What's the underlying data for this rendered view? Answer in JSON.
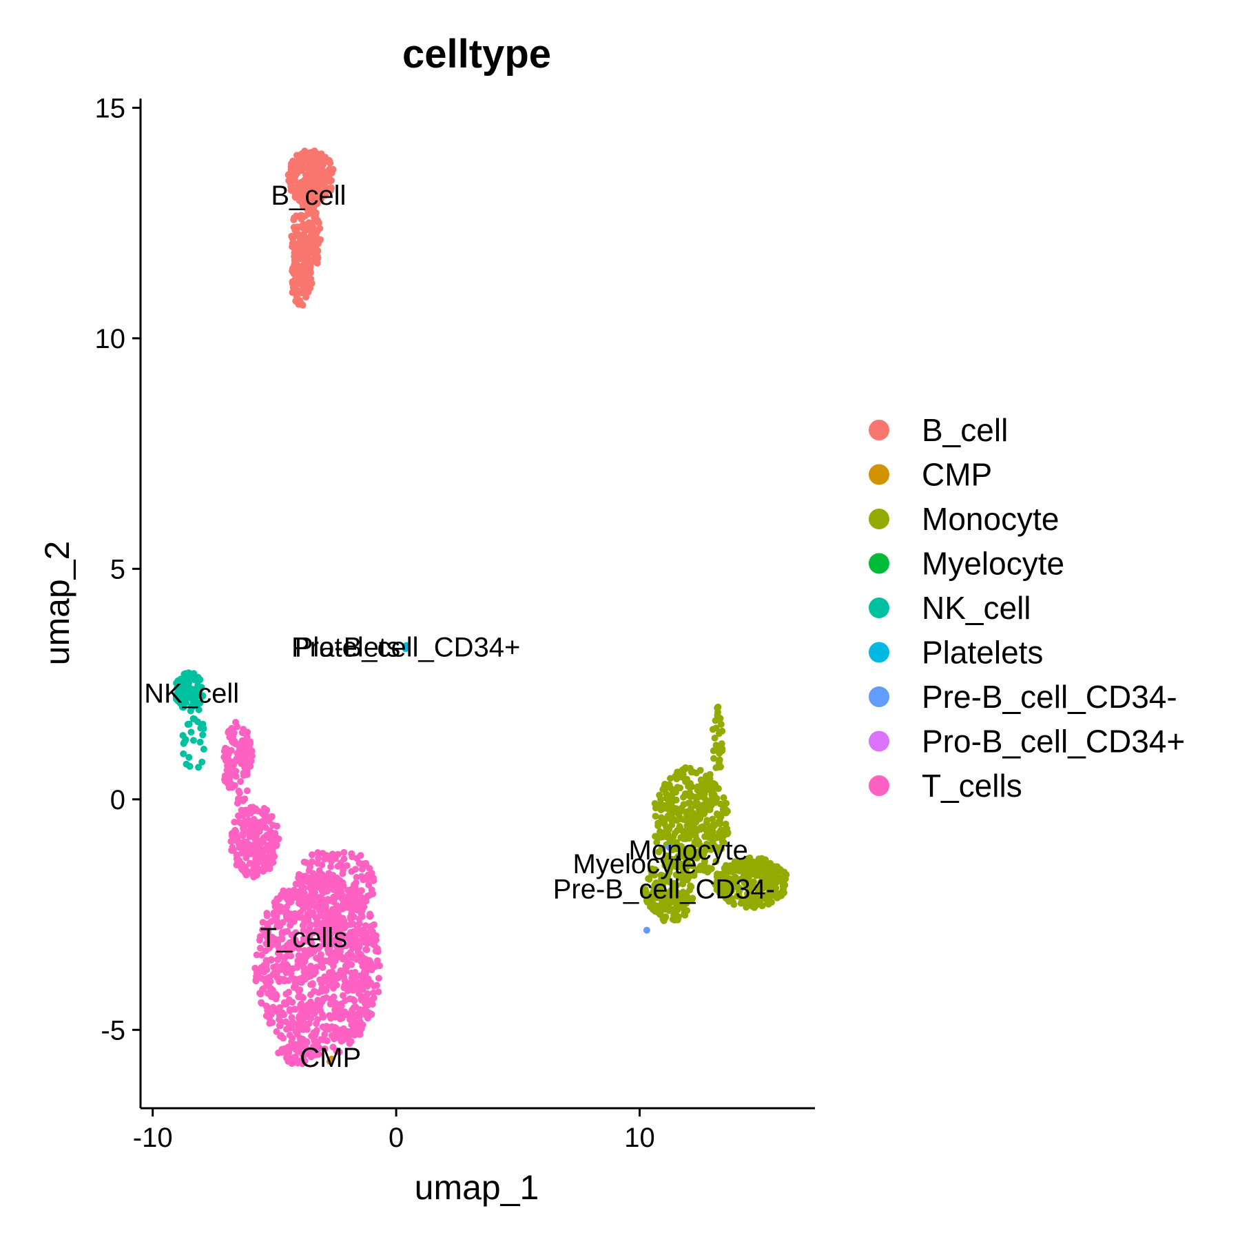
{
  "chart_data": {
    "type": "scatter",
    "title": "celltype",
    "xlabel": "umap_1",
    "ylabel": "umap_2",
    "xlim": [
      -10.5,
      17.2
    ],
    "ylim": [
      -6.7,
      15.2
    ],
    "x_ticks": [
      {
        "value": -10,
        "label": "-10"
      },
      {
        "value": 0,
        "label": "0"
      },
      {
        "value": 10,
        "label": "10"
      }
    ],
    "y_ticks": [
      {
        "value": -5,
        "label": "-5"
      },
      {
        "value": 0,
        "label": "0"
      },
      {
        "value": 5,
        "label": "5"
      },
      {
        "value": 10,
        "label": "10"
      },
      {
        "value": 15,
        "label": "15"
      }
    ],
    "grid": false,
    "legend_position": "right",
    "series": [
      {
        "name": "B_cell",
        "color": "#F8766D",
        "label_pos": [
          -3.6,
          12.9
        ],
        "clusters": [
          {
            "shape": "ellipse",
            "cx": -3.5,
            "cy": 13.5,
            "rx": 0.95,
            "ry": 0.6,
            "n": 230
          },
          {
            "shape": "ellipse",
            "cx": -3.7,
            "cy": 12.2,
            "rx": 0.6,
            "ry": 0.9,
            "n": 160
          },
          {
            "shape": "ellipse",
            "cx": -3.9,
            "cy": 11.3,
            "rx": 0.45,
            "ry": 0.6,
            "n": 90
          }
        ]
      },
      {
        "name": "CMP",
        "color": "#D39200",
        "label_pos": [
          -2.7,
          -5.8
        ],
        "clusters": [
          {
            "shape": "ellipse",
            "cx": -2.7,
            "cy": -5.65,
            "rx": 0.06,
            "ry": 0.06,
            "n": 2
          },
          {
            "shape": "ellipse",
            "cx": -2.8,
            "cy": -1.25,
            "rx": 0.08,
            "ry": 0.06,
            "n": 2
          }
        ]
      },
      {
        "name": "Monocyte",
        "color": "#93AA00",
        "label_pos": [
          12.0,
          -1.3
        ],
        "clusters": [
          {
            "shape": "ellipse",
            "cx": 12.1,
            "cy": -0.5,
            "rx": 1.6,
            "ry": 1.2,
            "n": 380
          },
          {
            "shape": "ellipse",
            "cx": 14.6,
            "cy": -1.8,
            "rx": 1.5,
            "ry": 0.55,
            "n": 260
          },
          {
            "shape": "ellipse",
            "cx": 11.2,
            "cy": -2.0,
            "rx": 1.0,
            "ry": 0.7,
            "n": 150
          },
          {
            "shape": "ellipse",
            "cx": 13.2,
            "cy": 1.3,
            "rx": 0.2,
            "ry": 0.8,
            "n": 26
          }
        ]
      },
      {
        "name": "Myelocyte",
        "color": "#00BA38",
        "label_pos": [
          9.8,
          -1.6
        ],
        "clusters": []
      },
      {
        "name": "NK_cell",
        "color": "#00C19F",
        "label_pos": [
          -8.4,
          2.1
        ],
        "clusters": [
          {
            "shape": "ellipse",
            "cx": -8.5,
            "cy": 2.35,
            "rx": 0.6,
            "ry": 0.4,
            "n": 130
          },
          {
            "shape": "ellipse",
            "cx": -8.3,
            "cy": 1.3,
            "rx": 0.5,
            "ry": 0.7,
            "n": 28
          }
        ]
      },
      {
        "name": "Platelets",
        "color": "#00B9E3",
        "label_pos": [
          -2.0,
          3.1
        ],
        "clusters": [
          {
            "shape": "ellipse",
            "cx": 0.4,
            "cy": 3.3,
            "rx": 0.05,
            "ry": 0.05,
            "n": 2
          }
        ]
      },
      {
        "name": "Pre-B_cell_CD34-",
        "color": "#619CFF",
        "label_pos": [
          11.0,
          -2.15
        ],
        "clusters": [
          {
            "shape": "ellipse",
            "cx": 11.2,
            "cy": -1.0,
            "rx": 0.05,
            "ry": 0.05,
            "n": 1
          },
          {
            "shape": "ellipse",
            "cx": 10.3,
            "cy": -2.85,
            "rx": 0.05,
            "ry": 0.05,
            "n": 1
          }
        ]
      },
      {
        "name": "Pro-B_cell_CD34+",
        "color": "#DB72FB",
        "label_pos": [
          0.4,
          3.1
        ],
        "clusters": []
      },
      {
        "name": "T_cells",
        "color": "#FF61C3",
        "label_pos": [
          -3.8,
          -3.2
        ],
        "clusters": [
          {
            "shape": "ellipse",
            "cx": -3.2,
            "cy": -3.6,
            "rx": 2.6,
            "ry": 2.0,
            "n": 900
          },
          {
            "shape": "ellipse",
            "cx": -2.5,
            "cy": -1.9,
            "rx": 1.6,
            "ry": 0.9,
            "n": 160
          },
          {
            "shape": "ellipse",
            "cx": -5.8,
            "cy": -0.9,
            "rx": 1.0,
            "ry": 0.8,
            "n": 200
          },
          {
            "shape": "ellipse",
            "cx": -6.5,
            "cy": 0.8,
            "rx": 0.6,
            "ry": 0.9,
            "n": 110
          },
          {
            "shape": "ellipse",
            "cx": -4.3,
            "cy": -5.55,
            "rx": 0.7,
            "ry": 0.25,
            "n": 30
          }
        ]
      }
    ]
  }
}
